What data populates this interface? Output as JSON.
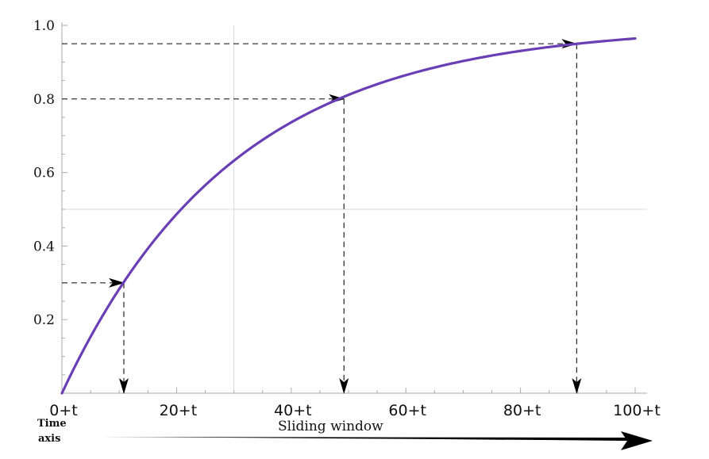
{
  "chart_data": {
    "type": "line",
    "title": "",
    "xlabel": "",
    "ylabel": "",
    "x_tick_labels": [
      "0+t",
      "20+t",
      "40+t",
      "60+t",
      "80+t",
      "100+t"
    ],
    "x_tick_values": [
      0,
      20,
      40,
      60,
      80,
      100
    ],
    "y_tick_labels": [
      "0.2",
      "0.4",
      "0.6",
      "0.8",
      "1.0"
    ],
    "y_tick_values": [
      0.2,
      0.4,
      0.6,
      0.8,
      1.0
    ],
    "xlim": [
      0,
      100
    ],
    "ylim": [
      0,
      1.0
    ],
    "series": [
      {
        "function": "1 - exp(-x/30)",
        "color": "#6a3fb5",
        "x": [
          0,
          5,
          10,
          15,
          20,
          25,
          30,
          35,
          40,
          45,
          50,
          55,
          60,
          65,
          70,
          75,
          80,
          85,
          90,
          95,
          100
        ],
        "y": [
          0,
          0.15,
          0.28,
          0.39,
          0.49,
          0.57,
          0.63,
          0.69,
          0.74,
          0.78,
          0.81,
          0.84,
          0.86,
          0.89,
          0.9,
          0.92,
          0.93,
          0.94,
          0.95,
          0.96,
          0.96
        ]
      }
    ],
    "annotations": [
      {
        "x": 10.8,
        "y": 0.3
      },
      {
        "x": 49.2,
        "y": 0.8
      },
      {
        "x": 89.8,
        "y": 0.95
      }
    ],
    "reference_lines": {
      "vertical_x": 30,
      "horizontal_y": 0.5
    },
    "bottom_labels": {
      "time_axis": [
        "Time",
        "axis"
      ],
      "sliding_window": "Sliding  window"
    },
    "colors": {
      "curve": "#6a3fb5",
      "guides": "#222222",
      "axis": "#aaaaaa"
    }
  }
}
